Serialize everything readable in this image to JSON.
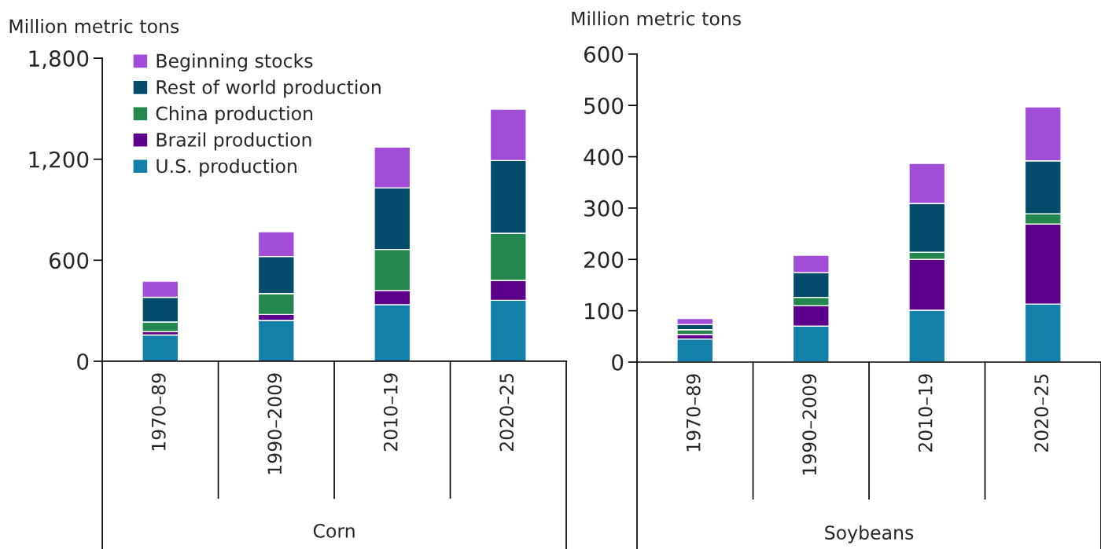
{
  "chart_data": [
    {
      "type": "bar",
      "stacked": true,
      "ylabel": "Million metric tons",
      "xlabel": "Corn",
      "categories": [
        "1970–89",
        "1990–2009",
        "2010–19",
        "2020–25"
      ],
      "ylim": [
        0,
        1800
      ],
      "yticks": [
        0,
        {
          "value": 600,
          "label": "600"
        },
        {
          "value": 1200,
          "label": "1,200"
        },
        {
          "value": 1800,
          "label": "1,800"
        }
      ],
      "legend": "top left",
      "grid": false,
      "series": [
        {
          "name": "U.S. production",
          "color": "#1380aa",
          "values": [
            156,
            242,
            336,
            362
          ]
        },
        {
          "name": "Brazil production",
          "color": "#5c008c",
          "values": [
            20,
            36,
            84,
            118
          ]
        },
        {
          "name": "China production",
          "color": "#248750",
          "values": [
            57,
            124,
            244,
            280
          ]
        },
        {
          "name": "Rest of world production",
          "color": "#034c6c",
          "values": [
            147,
            220,
            366,
            432
          ]
        },
        {
          "name": "Beginning stocks",
          "color": "#a24dd8",
          "values": [
            95,
            147,
            242,
            305
          ]
        }
      ]
    },
    {
      "type": "bar",
      "stacked": true,
      "ylabel": "Million metric tons",
      "xlabel": "Soybeans",
      "categories": [
        "1970–89",
        "1990–2009",
        "2010–19",
        "2020–25"
      ],
      "ylim": [
        0,
        600
      ],
      "yticks": [
        0,
        100,
        200,
        300,
        400,
        500,
        600
      ],
      "grid": false,
      "series": [
        {
          "color": "#1380aa",
          "values": [
            45,
            70,
            101,
            113
          ]
        },
        {
          "color": "#5c008c",
          "values": [
            9,
            40,
            99,
            156
          ]
        },
        {
          "color": "#248750",
          "values": [
            9,
            16,
            14,
            20
          ]
        },
        {
          "color": "#034c6c",
          "values": [
            10,
            48,
            95,
            103
          ]
        },
        {
          "color": "#a24dd8",
          "values": [
            12,
            34,
            78,
            105
          ]
        }
      ]
    }
  ]
}
